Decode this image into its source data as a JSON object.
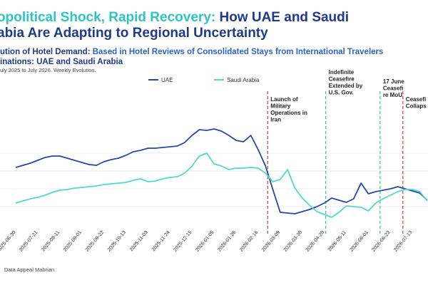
{
  "chart_data": {
    "type": "line",
    "title": {
      "highlight": "opolitical Shock, Rapid Recovery:",
      "rest": " How UAE and Saudi",
      "line2": "abia Are Adapting to Regional Uncertainty"
    },
    "subtitle": {
      "lead": "ution of Hotel Demand:",
      "rest": " Based in Hotel Reviews of Consolidated Stays from International Travelers"
    },
    "destinations": "inations: UAE and Saudi Arabia",
    "period": "uly 2025 to July 2026. Weekly Evolution.",
    "source": "Data Appeal Mabrian",
    "categories": [
      "2025-06-30",
      null,
      null,
      "2025-07-21",
      null,
      null,
      "2025-08-11",
      null,
      null,
      "2025-09-01",
      null,
      null,
      "2025-09-22",
      null,
      null,
      "2025-10-13",
      null,
      null,
      "2025-11-03",
      null,
      null,
      "2025-11-24",
      null,
      null,
      "2025-12-15",
      null,
      null,
      "2026-01-05",
      null,
      null,
      "2026-01-26",
      null,
      null,
      "2026-02-16",
      null,
      null,
      "2026-03-09",
      null,
      null,
      "2026-03-30",
      null,
      null,
      "2026-04-20",
      null,
      null,
      "2026-05-11",
      null,
      null,
      "2026-06-01",
      null,
      null,
      "2026-06-22",
      null,
      null,
      "2026-07-13",
      null,
      null
    ],
    "series": [
      {
        "name": "UAE",
        "color": "#2449a6",
        "values": [
          47.5,
          49,
          50.5,
          52.5,
          54.5,
          55.5,
          55.5,
          54,
          52.5,
          51,
          49.5,
          49,
          51.5,
          53,
          54,
          56,
          58.5,
          59.5,
          61,
          61,
          61.5,
          62,
          62.5,
          65,
          70,
          74,
          73.5,
          74.5,
          73,
          70,
          66.5,
          65.5,
          70,
          60,
          48.5,
          32,
          16,
          15.5,
          15,
          16.5,
          18,
          20,
          22.5,
          26,
          24.5,
          23,
          25.5,
          36.5,
          29,
          30.5,
          31.5,
          32.5,
          34,
          32.5,
          31,
          29.5,
          24.5
        ]
      },
      {
        "name": "Saudi Arabia",
        "color": "#4dd9cf",
        "values": [
          22.5,
          24,
          25.5,
          26.5,
          28,
          30,
          31.5,
          32,
          33,
          33.5,
          34,
          34.5,
          35.5,
          36,
          36.5,
          37,
          38.5,
          39.5,
          37.5,
          38,
          39.5,
          40.5,
          41,
          43.5,
          48.5,
          55.5,
          57.5,
          50,
          48.5,
          46,
          47,
          47,
          47.5,
          47,
          43.5,
          37.5,
          39,
          46,
          33,
          26,
          21,
          16.5,
          14.5,
          12.5,
          16,
          20.5,
          20,
          19.5,
          17,
          22.5,
          25.5,
          28,
          30.5,
          32,
          32,
          30.5,
          24
        ]
      }
    ],
    "ylim": [
      0,
      100
    ],
    "events": [
      {
        "x": 34.3,
        "color": "#c0392b",
        "label": [
          "Launch of",
          "Military",
          "Operations in",
          "Iran"
        ]
      },
      {
        "x": 42.2,
        "color": "#2ecc71",
        "label": [
          "Indefinite",
          "Ceasefire",
          "Extended by",
          "U.S. Gov."
        ]
      },
      {
        "x": 49.6,
        "color": "#2ecc71",
        "label": [
          "17 June",
          "Ceasefi",
          "re MoU"
        ]
      },
      {
        "x": 52.7,
        "color": "#c0392b",
        "label": [
          "Ceasefi",
          "Collaps"
        ]
      }
    ]
  }
}
